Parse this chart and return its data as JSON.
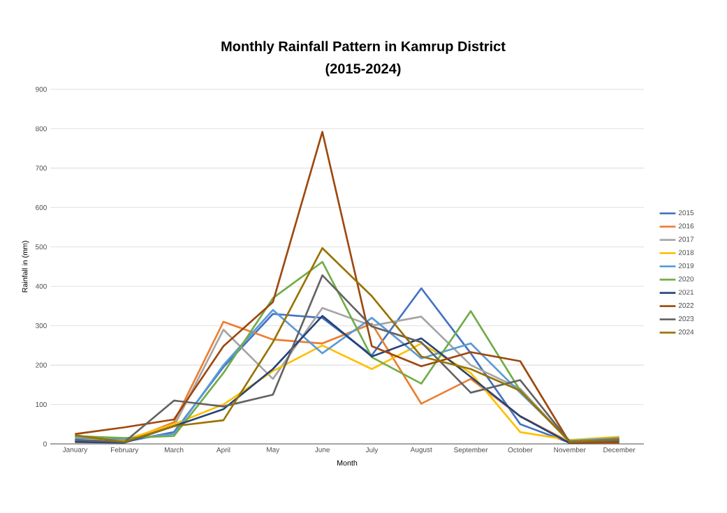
{
  "chart_data": {
    "type": "line",
    "title": "Monthly Rainfall Pattern in Kamrup District",
    "subtitle": "(2015-2024)",
    "xlabel": "Month",
    "ylabel": "Rainfall in (mm)",
    "categories": [
      "January",
      "February",
      "March",
      "April",
      "May",
      "June",
      "July",
      "August",
      "September",
      "October",
      "November",
      "December"
    ],
    "ylim": [
      0,
      900
    ],
    "yticks": [
      0,
      100,
      200,
      300,
      400,
      500,
      600,
      700,
      800,
      900
    ],
    "grid": "y",
    "legend": "right",
    "marker": "none",
    "line_style": "solid",
    "series": [
      {
        "name": "2015",
        "color": "#4472c4",
        "values": [
          10,
          5,
          30,
          195,
          330,
          320,
          225,
          395,
          230,
          50,
          3,
          10
        ]
      },
      {
        "name": "2016",
        "color": "#ed7d31",
        "values": [
          5,
          5,
          55,
          310,
          265,
          255,
          305,
          102,
          165,
          70,
          5,
          15
        ]
      },
      {
        "name": "2017",
        "color": "#a5a5a5",
        "values": [
          8,
          5,
          45,
          290,
          165,
          345,
          300,
          323,
          200,
          140,
          5,
          12
        ]
      },
      {
        "name": "2018",
        "color": "#ffc000",
        "values": [
          15,
          10,
          50,
          100,
          185,
          250,
          190,
          255,
          180,
          30,
          10,
          18
        ]
      },
      {
        "name": "2019",
        "color": "#5b9bd5",
        "values": [
          15,
          12,
          25,
          200,
          340,
          230,
          320,
          217,
          255,
          130,
          8,
          15
        ]
      },
      {
        "name": "2020",
        "color": "#70ad47",
        "values": [
          20,
          15,
          20,
          180,
          370,
          462,
          220,
          153,
          337,
          135,
          5,
          10
        ]
      },
      {
        "name": "2021",
        "color": "#264478",
        "values": [
          5,
          3,
          45,
          88,
          190,
          325,
          222,
          268,
          170,
          70,
          2,
          5
        ]
      },
      {
        "name": "2022",
        "color": "#9e480e",
        "values": [
          25,
          42,
          62,
          248,
          360,
          792,
          248,
          197,
          233,
          210,
          3,
          3
        ]
      },
      {
        "name": "2023",
        "color": "#636363",
        "values": [
          10,
          5,
          110,
          95,
          125,
          428,
          298,
          258,
          130,
          162,
          5,
          8
        ]
      },
      {
        "name": "2024",
        "color": "#997300",
        "values": [
          22,
          5,
          45,
          60,
          258,
          497,
          375,
          222,
          190,
          135,
          5,
          12
        ]
      }
    ]
  }
}
